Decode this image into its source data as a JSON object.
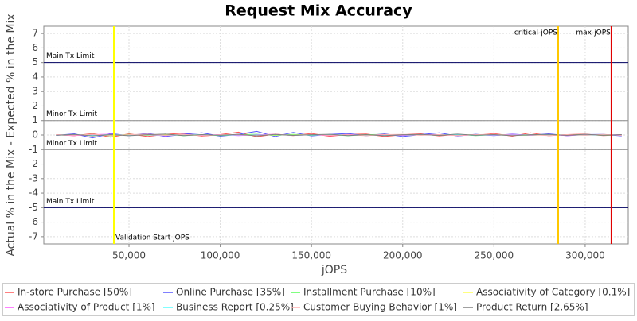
{
  "chart_data": {
    "type": "line",
    "title": "Request Mix Accuracy",
    "x_label": "jOPS",
    "y_label": "Actual % in the Mix - Expected % in the Mix",
    "xlim": [
      3300,
      323600
    ],
    "ylim": [
      -7.5,
      7.5
    ],
    "xticks": [
      {
        "value": 50000,
        "label": "50,000"
      },
      {
        "value": 100000,
        "label": "100,000"
      },
      {
        "value": 150000,
        "label": "150,000"
      },
      {
        "value": 200000,
        "label": "200,000"
      },
      {
        "value": 250000,
        "label": "250,000"
      },
      {
        "value": 300000,
        "label": "300,000"
      }
    ],
    "yticks": [
      -7,
      -6,
      -5,
      -4,
      -3,
      -2,
      -1,
      0,
      1,
      2,
      3,
      4,
      5,
      6,
      7
    ],
    "grid": true,
    "range_markers": [
      {
        "value": 5,
        "label": "Main Tx Limit"
      },
      {
        "value": 1,
        "label": "Minor Tx Limit"
      },
      {
        "value": -1,
        "label": "Minor Tx Limit"
      },
      {
        "value": -5,
        "label": "Main Tx Limit"
      }
    ],
    "domain_markers": [
      {
        "value": 41700,
        "label": "Validation Start jOPS",
        "color": "#ffff00"
      },
      {
        "value": 285200,
        "label": "critical-jOPS",
        "color": "#ffc800"
      },
      {
        "value": 314400,
        "label": "max-jOPS",
        "color": "#e00000"
      }
    ],
    "x": [
      10000,
      20000,
      30000,
      40000,
      50000,
      60000,
      70000,
      80000,
      90000,
      100000,
      110000,
      120000,
      130000,
      140000,
      150000,
      160000,
      170000,
      180000,
      190000,
      200000,
      210000,
      220000,
      230000,
      240000,
      250000,
      260000,
      270000,
      280000,
      290000,
      300000,
      310000,
      320000
    ],
    "series": [
      {
        "name": "In-store Purchase [50%]",
        "color": "#ff5555",
        "values": [
          0.02,
          -0.05,
          0.1,
          -0.15,
          0.08,
          -0.1,
          0.05,
          0.12,
          -0.08,
          0.03,
          0.2,
          -0.12,
          0.06,
          -0.04,
          0.1,
          -0.09,
          0.04,
          0.07,
          -0.1,
          0.02,
          0.08,
          -0.06,
          0.05,
          -0.03,
          0.1,
          -0.08,
          0.15,
          -0.05,
          0.03,
          0.06,
          -0.04,
          0.02
        ]
      },
      {
        "name": "Online Purchase [35%]",
        "color": "#5555ff",
        "values": [
          -0.03,
          0.08,
          -0.2,
          0.1,
          -0.05,
          0.12,
          -0.1,
          0.06,
          0.15,
          -0.08,
          0.05,
          0.25,
          -0.1,
          0.18,
          -0.06,
          0.04,
          0.1,
          -0.05,
          0.08,
          -0.1,
          0.03,
          0.15,
          -0.07,
          0.05,
          -0.04,
          0.06,
          -0.02,
          0.08,
          -0.05,
          0.03,
          0.04,
          -0.06
        ]
      },
      {
        "name": "Installment Purchase [10%]",
        "color": "#55ff55",
        "values": [
          0.01,
          -0.03,
          0.05,
          -0.06,
          0.04,
          -0.02,
          0.06,
          -0.05,
          0.03,
          -0.04,
          0.02,
          0.05,
          -0.03,
          0.04,
          -0.02,
          0.03,
          -0.05,
          0.02,
          0.04,
          -0.03,
          0.02,
          -0.02,
          0.05,
          -0.04,
          0.03,
          0.01,
          -0.03,
          0.02,
          -0.01,
          0.03,
          -0.02,
          0.01
        ]
      },
      {
        "name": "Associativity of Category [0.1%]",
        "color": "#ffff55",
        "values": [
          0,
          0.01,
          -0.01,
          0.02,
          0,
          -0.01,
          0.01,
          0,
          -0.02,
          0.01,
          0,
          0.01,
          -0.01,
          0,
          0.02,
          -0.01,
          0,
          0.01,
          0,
          -0.01,
          0.01,
          0,
          -0.01,
          0.02,
          0,
          -0.01,
          0.01,
          0,
          -0.01,
          0,
          0.01,
          0
        ]
      },
      {
        "name": "Associativity of Product [1%]",
        "color": "#ff55ff",
        "values": [
          0.02,
          -0.04,
          0.03,
          0.05,
          -0.03,
          0.02,
          -0.05,
          0.04,
          -0.02,
          0.03,
          -0.04,
          0.02,
          0.05,
          -0.03,
          0.02,
          -0.04,
          0.03,
          -0.02,
          0.04,
          -0.03,
          0.02,
          0.03,
          -0.04,
          0.02,
          -0.03,
          0.04,
          -0.02,
          0.03,
          -0.04,
          0.02,
          -0.01,
          0.03
        ]
      },
      {
        "name": "Business Report [0.25%]",
        "color": "#55ffff",
        "values": [
          -0.01,
          0.02,
          -0.02,
          0.03,
          -0.01,
          0.02,
          -0.03,
          0.01,
          0.02,
          -0.02,
          0.01,
          -0.01,
          0.03,
          -0.02,
          0.01,
          0.02,
          -0.01,
          0.01,
          -0.02,
          0.02,
          -0.01,
          0.01,
          0.02,
          -0.02,
          0.01,
          -0.01,
          0.02,
          -0.01,
          0.01,
          -0.02,
          0.01,
          0
        ]
      },
      {
        "name": "Customer Buying Behavior [1%]",
        "color": "#ffafaf",
        "values": [
          0.03,
          -0.02,
          0.05,
          -0.04,
          0.02,
          0.06,
          -0.03,
          0.04,
          -0.05,
          0.02,
          0.03,
          -0.04,
          0.05,
          -0.02,
          0.04,
          -0.03,
          0.02,
          -0.05,
          0.03,
          0.04,
          -0.02,
          0.03,
          -0.04,
          0.02,
          0.05,
          -0.03,
          0.02,
          -0.04,
          0.03,
          -0.02,
          0.04,
          -0.03
        ]
      },
      {
        "name": "Product Return [2.65%]",
        "color": "#808080",
        "values": [
          -0.02,
          0.04,
          -0.06,
          0.03,
          -0.05,
          0.02,
          0.06,
          -0.04,
          0.03,
          -0.02,
          0.05,
          -0.06,
          0.04,
          -0.03,
          0.02,
          0.05,
          -0.04,
          0.03,
          -0.05,
          0.02,
          0.04,
          -0.03,
          0.06,
          -0.02,
          0.03,
          -0.05,
          0.02,
          0.04,
          -0.03,
          0.05,
          -0.02,
          0.03
        ]
      }
    ]
  }
}
